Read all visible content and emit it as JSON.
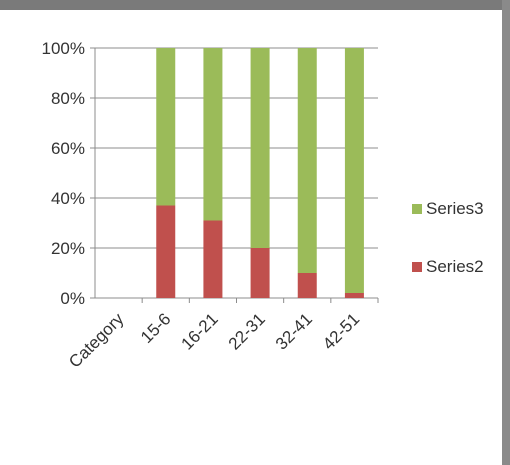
{
  "chart_data": {
    "type": "bar",
    "stacked": "percent",
    "categories": [
      "Category",
      "15-6",
      "16-21",
      "22-31",
      "32-41",
      "42-51"
    ],
    "series": [
      {
        "name": "Series2",
        "values": [
          null,
          37,
          31,
          20,
          10,
          2
        ]
      },
      {
        "name": "Series3",
        "values": [
          null,
          63,
          69,
          80,
          90,
          98
        ]
      }
    ],
    "yticks": [
      "0%",
      "20%",
      "40%",
      "60%",
      "80%",
      "100%"
    ],
    "ylim": [
      0,
      100
    ],
    "grid": true,
    "legend": "right",
    "colors": {
      "Series2": "#c0504d",
      "Series3": "#9bbb59"
    }
  }
}
